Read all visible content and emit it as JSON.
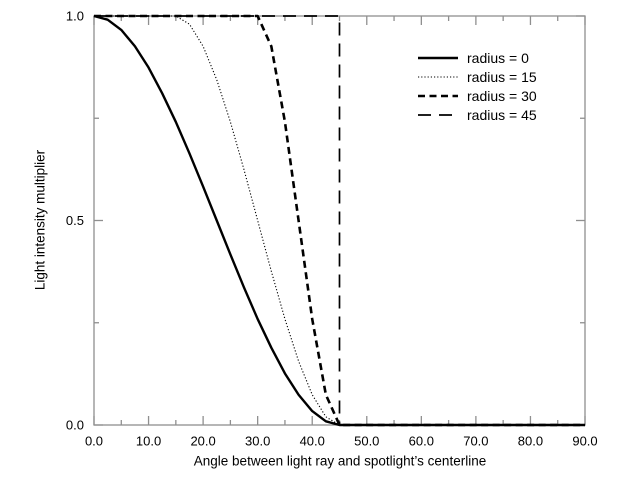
{
  "page": {
    "background": "#ffffff"
  },
  "chart_data": {
    "type": "line",
    "title": "",
    "xlabel": "Angle between light ray and spotlight’s centerline",
    "ylabel": "Light intensity multiplier",
    "xlim": [
      0,
      90
    ],
    "ylim": [
      0,
      1
    ],
    "grid": false,
    "legend_position": "inside upper right",
    "axis_color": "#8f8f8f",
    "curve_color": "#000000",
    "tick_label_color": "#000000",
    "xticks": {
      "major": [
        0,
        10,
        20,
        30,
        40,
        50,
        60,
        70,
        80,
        90
      ],
      "labels": [
        "0.0",
        "10.0",
        "20.0",
        "30.0",
        "40.0",
        "50.0",
        "60.0",
        "70.0",
        "80.0",
        "90.0"
      ],
      "minor": [
        5,
        15,
        25,
        35,
        45,
        55,
        65,
        75,
        85
      ]
    },
    "yticks": {
      "major": [
        0,
        0.5,
        1
      ],
      "labels": [
        "0.0",
        "0.5",
        "1.0"
      ],
      "minor": [
        0.25,
        0.75
      ]
    },
    "series": [
      {
        "name": "radius = 0",
        "line_style": "solid",
        "x": [
          0,
          2.5,
          5,
          7.5,
          10,
          12.5,
          15,
          17.5,
          20,
          22.5,
          25,
          27.5,
          30,
          32.5,
          35,
          37.5,
          40,
          42.5,
          45,
          90
        ],
        "y": [
          1,
          0.991,
          0.966,
          0.926,
          0.874,
          0.811,
          0.741,
          0.664,
          0.583,
          0.5,
          0.417,
          0.336,
          0.259,
          0.189,
          0.126,
          0.074,
          0.034,
          0.009,
          0,
          0
        ]
      },
      {
        "name": "radius = 15",
        "line_style": "dotted",
        "x": [
          0,
          15,
          17.5,
          20,
          22.5,
          25,
          27.5,
          30,
          32.5,
          35,
          37.5,
          40,
          42.5,
          45,
          90
        ],
        "y": [
          1,
          1,
          0.98,
          0.926,
          0.844,
          0.741,
          0.624,
          0.5,
          0.376,
          0.259,
          0.156,
          0.074,
          0.02,
          0,
          0
        ]
      },
      {
        "name": "radius = 30",
        "line_style": "dashed",
        "x": [
          0,
          30,
          32.5,
          35,
          37.5,
          40,
          42.5,
          45,
          90
        ],
        "y": [
          1,
          1,
          0.926,
          0.741,
          0.5,
          0.259,
          0.074,
          0,
          0
        ]
      },
      {
        "name": "radius = 45",
        "line_style": "long-dash",
        "x": [
          0,
          45,
          45,
          90
        ],
        "y": [
          1,
          1,
          0,
          0
        ]
      }
    ]
  }
}
